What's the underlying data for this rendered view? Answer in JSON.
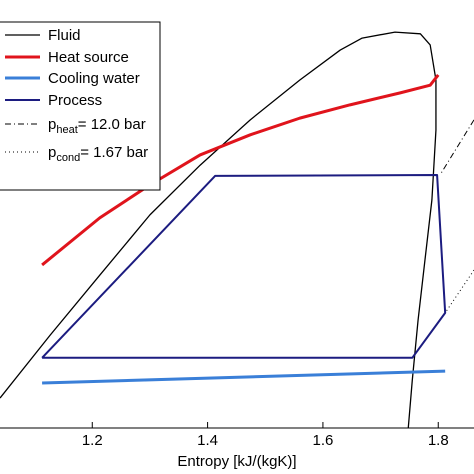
{
  "chart_data": {
    "type": "line",
    "x_label": "Entropy [kJ/(kgK)]",
    "xlim": [
      1.04,
      1.862
    ],
    "xticks": [
      1.2,
      1.4,
      1.6,
      1.8
    ],
    "ylim": [
      0,
      100
    ],
    "legend": "upper left",
    "series": [
      {
        "name": "Fluid",
        "color": "#000000",
        "width": 1.3,
        "dash": "solid",
        "x": [
          1.04,
          1.127,
          1.213,
          1.3,
          1.387,
          1.474,
          1.56,
          1.63,
          1.668,
          1.725,
          1.769,
          1.786,
          1.796,
          1.796,
          1.789,
          1.777,
          1.765,
          1.755,
          1.748
        ],
        "values": [
          7.0,
          21.7,
          35.7,
          49.8,
          61.4,
          72.0,
          81.3,
          88.3,
          91.1,
          92.5,
          92.1,
          89.5,
          81.3,
          69.6,
          53.3,
          39.3,
          25.2,
          11.2,
          0
        ]
      },
      {
        "name": "Heat source",
        "color": "#e0141c",
        "width": 3,
        "dash": "solid",
        "x": [
          1.113,
          1.213,
          1.3,
          1.387,
          1.474,
          1.56,
          1.647,
          1.734,
          1.786,
          1.8
        ],
        "values": [
          38.1,
          49.1,
          56.8,
          63.8,
          68.5,
          72.4,
          75.5,
          78.3,
          80.1,
          82.5
        ]
      },
      {
        "name": "Cooling water",
        "color": "#3a7fd8",
        "width": 3,
        "dash": "solid",
        "x": [
          1.113,
          1.812
        ],
        "values": [
          10.5,
          13.3
        ]
      },
      {
        "name": "Process",
        "color": "#1c1c80",
        "width": 2,
        "dash": "solid",
        "x": [
          1.113,
          1.413,
          1.798,
          1.812,
          1.755,
          1.113
        ],
        "values": [
          16.4,
          58.9,
          59.1,
          26.9,
          16.4,
          16.4
        ]
      },
      {
        "name": "p",
        "name_sub": "heat",
        "name_suffix": "= 12.0 bar",
        "color": "#000000",
        "width": 1,
        "dash": "dashdot",
        "x": [
          1.862,
          1.803
        ],
        "values": [
          72.0,
          59.1
        ]
      },
      {
        "name": "p",
        "name_sub": "cond",
        "name_suffix": "= 1.67 bar",
        "color": "#000000",
        "width": 1,
        "dash": "dotted",
        "x": [
          1.862,
          1.812
        ],
        "values": [
          36.9,
          26.9
        ]
      }
    ]
  }
}
